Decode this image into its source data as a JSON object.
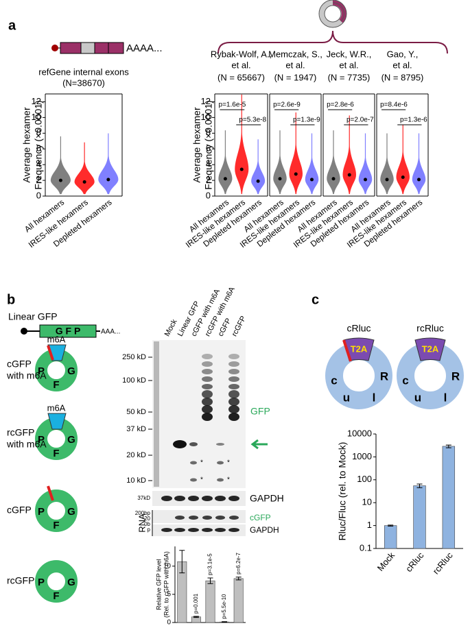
{
  "figure": {
    "panel_a": {
      "label": "a",
      "poly_a": "AAAA..."
    },
    "panel_b": {
      "label": "b",
      "linear_title": "Linear GFP",
      "gfp_box": "G F P",
      "poly_a": "AAA...",
      "constructs": [
        {
          "name": [
            "cGFP",
            "with m6A"
          ],
          "mod": "m6A",
          "letters": [
            "P",
            "G",
            "F"
          ]
        },
        {
          "name": [
            "rcGFP",
            "with m6A"
          ],
          "mod": "m6A",
          "letters": [
            "P",
            "G",
            "F"
          ]
        },
        {
          "name": [
            "cGFP"
          ],
          "letters": [
            "P",
            "G",
            "F"
          ]
        },
        {
          "name": [
            "rcGFP"
          ],
          "letters": [
            "P",
            "G",
            "F"
          ]
        }
      ],
      "lanes": [
        "Mock",
        "Linear GFP",
        "cGFP with m6A",
        "rcGFP with m6A",
        "cGFP",
        "rcGFP"
      ],
      "markers": [
        "250 kD",
        "100 kD",
        "50 kD",
        "37 kD",
        "20 kD",
        "10 kD"
      ],
      "asterisks": [
        "*",
        "*",
        "*",
        "*"
      ],
      "gfp_label": "GFP",
      "gapdh_marker": "37kD",
      "gapdh": "GAPDH",
      "rna": "RNA",
      "rna_markers": [
        "200bp",
        "20",
        "0b",
        "p"
      ],
      "cgfp": "cGFP",
      "gapdh2": "GAPDH"
    },
    "panel_c": {
      "label": "c",
      "constructs": [
        "cRluc",
        "rcRluc"
      ],
      "t2a": "T2A",
      "letters": [
        "c",
        "u",
        "l",
        "R"
      ]
    }
  },
  "chart_data": [
    {
      "type": "violin",
      "title": [
        "refGene internal exons"
      ],
      "n_label": "(N=38670)",
      "ylabel": [
        "Average hexamer",
        "Frequency (×0.0001)"
      ],
      "categories": [
        "All hexamers",
        "IRES-like hexamers",
        "Depleted hexamers"
      ],
      "values": [
        2.0,
        1.8,
        2.1
      ],
      "colors": [
        "#808080",
        "#ff2b2b",
        "#8080ff"
      ],
      "ylim": [
        0,
        13
      ],
      "yticks": [
        0,
        2,
        4,
        6,
        8,
        10,
        12
      ]
    },
    {
      "type": "violin",
      "title": [
        "Rybak-Wolf, A.,",
        "et al."
      ],
      "n_label": "(N = 65667)",
      "ylabel": [
        "Average hexamer",
        "Frequency (×0.0001)"
      ],
      "categories": [
        "All hexamers",
        "IRES-like hexamers",
        "Depleted hexamers"
      ],
      "values": [
        2.2,
        3.4,
        1.9
      ],
      "pvalues": [
        "p=1.6e-5",
        "p=5.3e-8"
      ],
      "colors": [
        "#808080",
        "#ff2b2b",
        "#8080ff"
      ],
      "ylim": [
        0,
        13
      ],
      "yticks": [
        0,
        2,
        4,
        6,
        8,
        10,
        12
      ]
    },
    {
      "type": "violin",
      "title": [
        "Memczak, S.,",
        "et al."
      ],
      "n_label": "(N = 1947)",
      "categories": [
        "All hexamers",
        "IRES-like hexamers",
        "Depleted hexamers"
      ],
      "values": [
        2.2,
        2.8,
        2.1
      ],
      "pvalues": [
        "p=2.6e-9",
        "p=1.3e-9"
      ],
      "colors": [
        "#808080",
        "#ff2b2b",
        "#8080ff"
      ],
      "ylim": [
        0,
        13
      ]
    },
    {
      "type": "violin",
      "title": [
        "Jeck, W.R.,",
        "et al."
      ],
      "n_label": "(N = 7735)",
      "categories": [
        "All hexamers",
        "IRES-like hexamers",
        "Depleted hexamers"
      ],
      "values": [
        2.2,
        2.7,
        2.1
      ],
      "pvalues": [
        "p=2.8e-6",
        "p=2.0e-7"
      ],
      "colors": [
        "#808080",
        "#ff2b2b",
        "#8080ff"
      ],
      "ylim": [
        0,
        13
      ]
    },
    {
      "type": "violin",
      "title": [
        "Gao, Y.,",
        "et al."
      ],
      "n_label": "(N = 8795)",
      "categories": [
        "All hexamers",
        "IRES-like hexamers",
        "Depleted hexamers"
      ],
      "values": [
        2.1,
        2.4,
        2.1
      ],
      "pvalues": [
        "p=8.4e-6",
        "p=1.3e-6"
      ],
      "colors": [
        "#808080",
        "#ff2b2b",
        "#8080ff"
      ],
      "ylim": [
        0,
        13
      ]
    },
    {
      "type": "bar",
      "ylabel": [
        "Relative GFP level",
        "(Rel. to cGFP with m6A)"
      ],
      "values": [
        10.8,
        1.0,
        7.4,
        0.1,
        7.8
      ],
      "errors": [
        2.0,
        0.1,
        0.5,
        0.05,
        0.25
      ],
      "annotations": [
        null,
        "p=0.001",
        "p=3.1e-5",
        "p=5.5e-10",
        "p=6.2e-7"
      ],
      "color": "#bfbfbf",
      "ylim": [
        0,
        13.5
      ],
      "yticks": [
        0,
        5,
        10
      ]
    },
    {
      "type": "bar",
      "ylabel": [
        "Rluc/Fluc (rel. to Mock)"
      ],
      "categories": [
        "Mock",
        "cRluc",
        "rcRluc"
      ],
      "values": [
        1,
        55,
        2900
      ],
      "errors": [
        0.05,
        10,
        400
      ],
      "color": "#8fb3e0",
      "log": true,
      "ylim": [
        0.1,
        10000
      ],
      "yticks": [
        0.1,
        1,
        10,
        100,
        1000,
        10000
      ]
    }
  ]
}
